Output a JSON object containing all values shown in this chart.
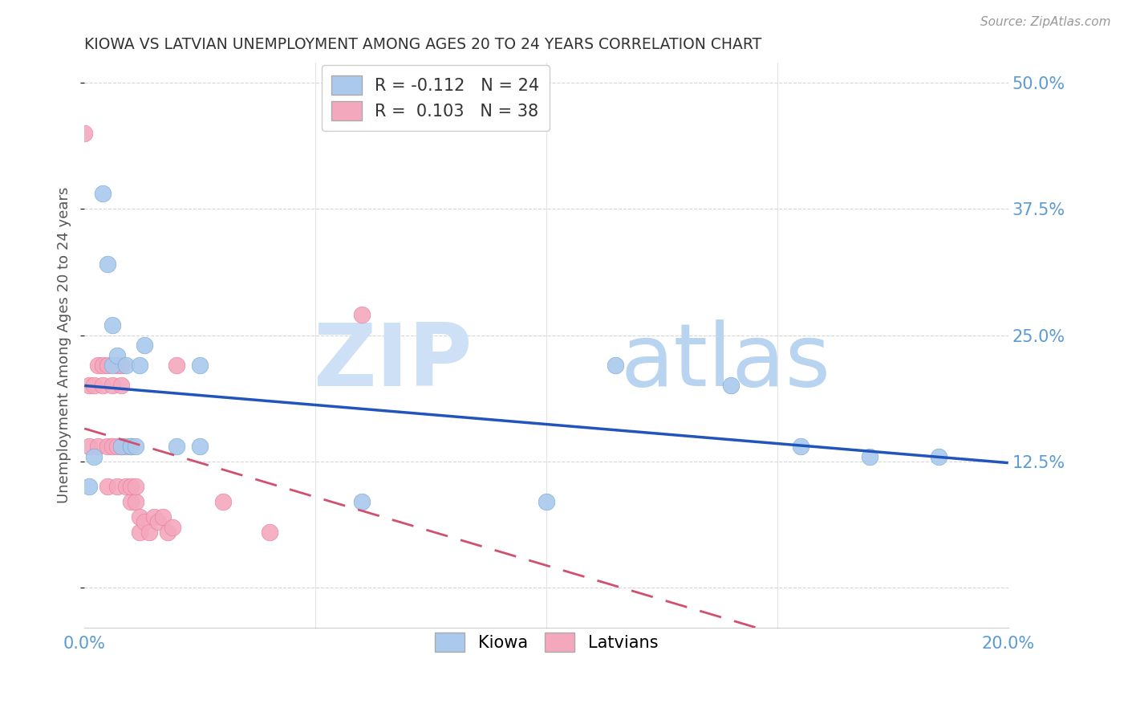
{
  "title": "KIOWA VS LATVIAN UNEMPLOYMENT AMONG AGES 20 TO 24 YEARS CORRELATION CHART",
  "source": "Source: ZipAtlas.com",
  "ylabel": "Unemployment Among Ages 20 to 24 years",
  "xlim": [
    0.0,
    0.2
  ],
  "ylim": [
    -0.04,
    0.52
  ],
  "ytick_vals": [
    0.0,
    0.125,
    0.25,
    0.375,
    0.5
  ],
  "ytick_labels": [
    "",
    "12.5%",
    "25.0%",
    "37.5%",
    "50.0%"
  ],
  "kiowa_R": "-0.112",
  "kiowa_N": "24",
  "latvian_R": "0.103",
  "latvian_N": "38",
  "kiowa_color": "#aac9ed",
  "latvian_color": "#f4a8be",
  "kiowa_edge_color": "#7aaad4",
  "latvian_edge_color": "#e87fa0",
  "trendline_kiowa_color": "#2255bb",
  "trendline_latvian_color": "#d05070",
  "kiowa_x": [
    0.001,
    0.002,
    0.004,
    0.005,
    0.006,
    0.006,
    0.007,
    0.008,
    0.009,
    0.01,
    0.01,
    0.011,
    0.012,
    0.013,
    0.02,
    0.025,
    0.025,
    0.06,
    0.1,
    0.115,
    0.14,
    0.155,
    0.17,
    0.185
  ],
  "kiowa_y": [
    0.1,
    0.13,
    0.39,
    0.32,
    0.26,
    0.22,
    0.23,
    0.14,
    0.22,
    0.14,
    0.14,
    0.14,
    0.22,
    0.24,
    0.14,
    0.22,
    0.14,
    0.085,
    0.085,
    0.22,
    0.2,
    0.14,
    0.13,
    0.13
  ],
  "latvian_x": [
    0.0,
    0.001,
    0.001,
    0.002,
    0.003,
    0.003,
    0.004,
    0.004,
    0.005,
    0.005,
    0.005,
    0.006,
    0.006,
    0.007,
    0.007,
    0.007,
    0.008,
    0.008,
    0.008,
    0.009,
    0.009,
    0.01,
    0.01,
    0.011,
    0.011,
    0.012,
    0.012,
    0.013,
    0.014,
    0.015,
    0.016,
    0.017,
    0.018,
    0.019,
    0.02,
    0.03,
    0.04,
    0.06
  ],
  "latvian_y": [
    0.45,
    0.14,
    0.2,
    0.2,
    0.14,
    0.22,
    0.2,
    0.22,
    0.1,
    0.14,
    0.22,
    0.14,
    0.2,
    0.1,
    0.14,
    0.22,
    0.14,
    0.2,
    0.22,
    0.1,
    0.14,
    0.085,
    0.1,
    0.085,
    0.1,
    0.055,
    0.07,
    0.065,
    0.055,
    0.07,
    0.065,
    0.07,
    0.055,
    0.06,
    0.22,
    0.085,
    0.055,
    0.27
  ],
  "watermark_zip": "ZIP",
  "watermark_atlas": "atlas",
  "background_color": "#ffffff",
  "grid_color": "#cccccc"
}
